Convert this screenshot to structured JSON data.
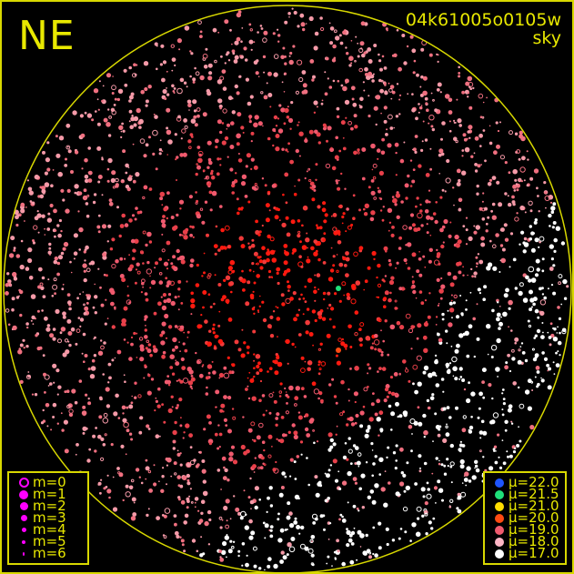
{
  "direction_label": "NE",
  "title": {
    "image_id": "04k61005o0105w",
    "subtitle": "sky"
  },
  "colors": {
    "frame": "#d8d800",
    "horizon_circle": "#d8d800",
    "text": "#e8e800",
    "marker": "#ff00ff"
  },
  "magnitude_legend": [
    {
      "label": "m=0",
      "style": "ring"
    },
    {
      "label": "m=1",
      "style": "filled"
    },
    {
      "label": "m=2",
      "style": "filled"
    },
    {
      "label": "m=3",
      "style": "filled"
    },
    {
      "label": "m=4",
      "style": "filled"
    },
    {
      "label": "m=5",
      "style": "filled"
    },
    {
      "label": "m=6",
      "style": "filled"
    }
  ],
  "mu_legend": [
    {
      "label": "μ=22.0",
      "color": "#1f55ff"
    },
    {
      "label": "μ=21.5",
      "color": "#1fe07a"
    },
    {
      "label": "μ=21.0",
      "color": "#ffdd00"
    },
    {
      "label": "μ=20.0",
      "color": "#ff4a12"
    },
    {
      "label": "μ=19.0",
      "color": "#f05a6e"
    },
    {
      "label": "μ=18.0",
      "color": "#ffb6c6"
    },
    {
      "label": "μ=17.0",
      "color": "#ffffff"
    }
  ]
}
